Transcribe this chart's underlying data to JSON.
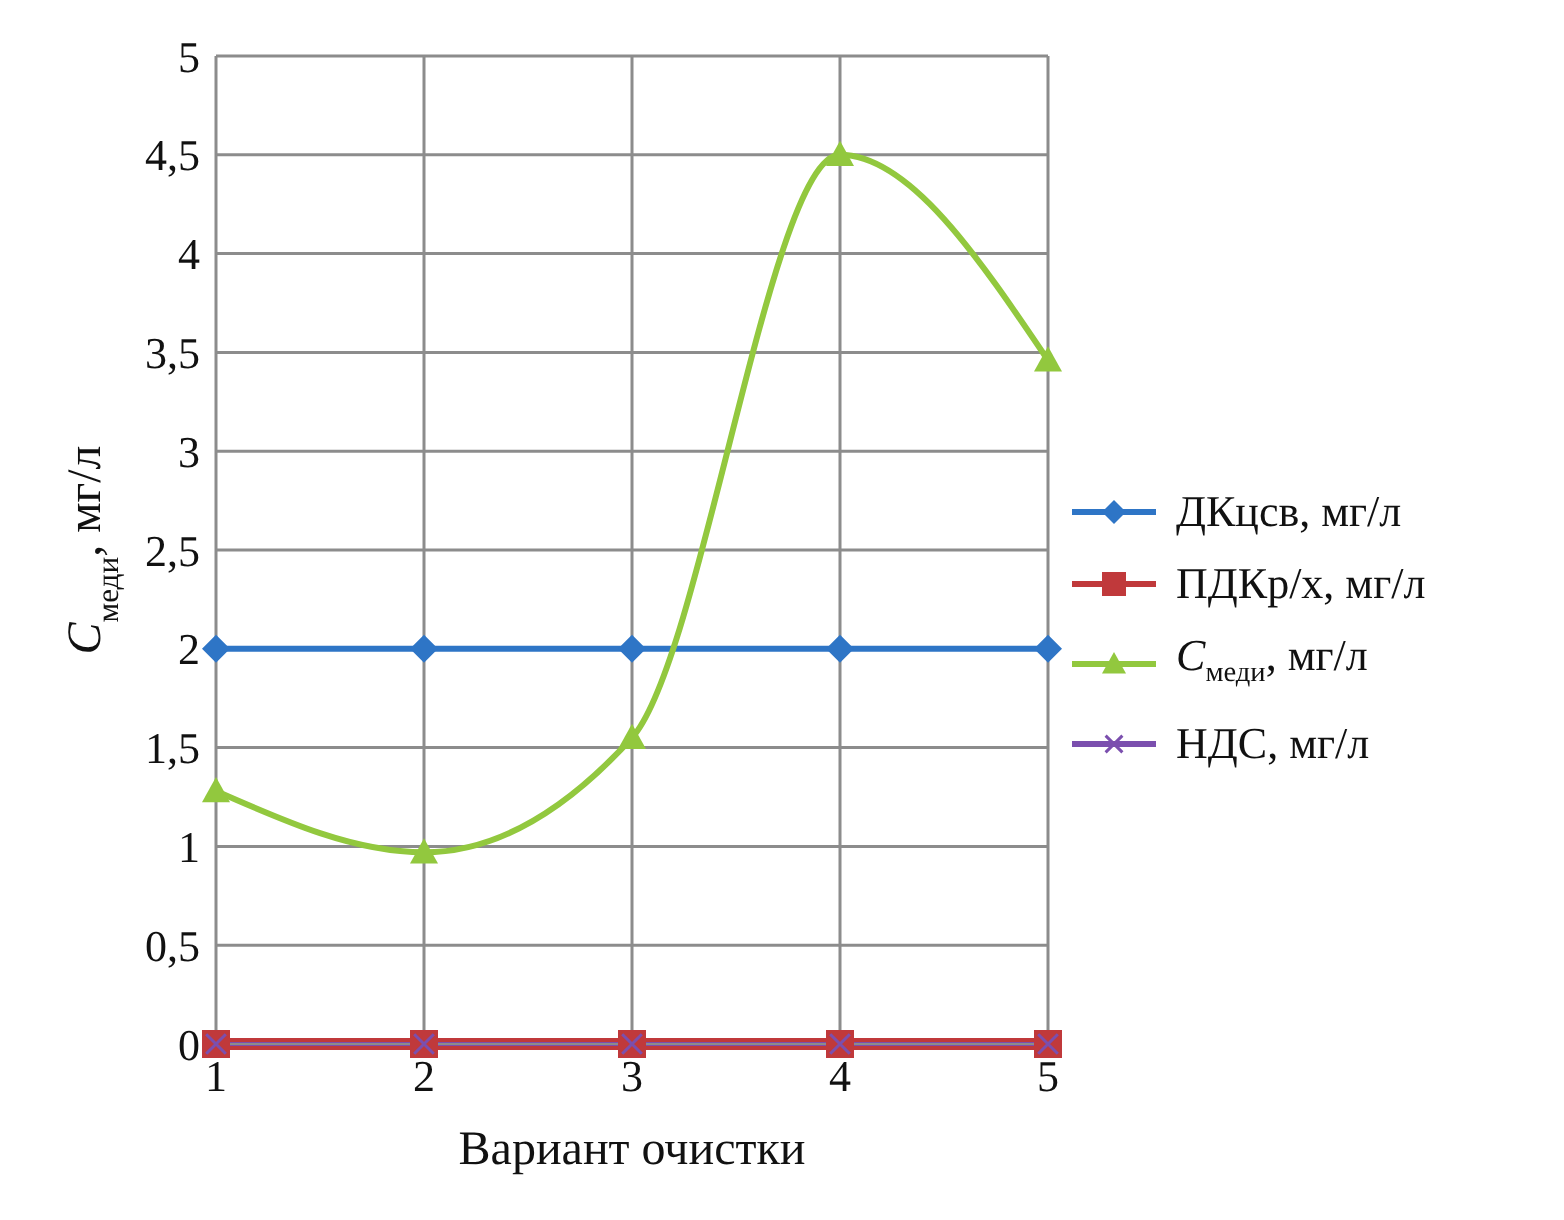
{
  "chart_data": {
    "type": "line",
    "xlabel": "Вариант очистки",
    "ylabel": "C$_{меди}$, мг/л",
    "x": [
      1,
      2,
      3,
      4,
      5
    ],
    "xlim": [
      1,
      5
    ],
    "xticks": [
      1,
      2,
      3,
      4,
      5
    ],
    "ylim": [
      0,
      5
    ],
    "yticks": [
      0,
      {
        "value": 0.5,
        "label": "0,5"
      },
      1,
      {
        "value": 1.5,
        "label": "1,5"
      },
      2,
      {
        "value": 2.5,
        "label": "2,5"
      },
      3,
      {
        "value": 3.5,
        "label": "3,5"
      },
      4,
      {
        "value": 4.5,
        "label": "4,5"
      },
      5
    ],
    "grid": true,
    "legend": "right",
    "series": [
      {
        "name": "ДКцсв, мг/л",
        "color": "#2e75c6",
        "marker": "diamond",
        "values": [
          2,
          2,
          2,
          2,
          2
        ]
      },
      {
        "name": "ПДКр/х, мг/л",
        "color": "#c0393b",
        "marker": "square",
        "values": [
          0,
          0,
          0,
          0,
          0
        ]
      },
      {
        "name": "C$_{меди}$, мг/л",
        "color": "#92c83e",
        "marker": "triangle",
        "values": [
          1.28,
          0.97,
          1.55,
          4.5,
          3.46
        ]
      },
      {
        "name": "НДС, мг/л",
        "color": "#7b4fae",
        "marker": "cross",
        "values": [
          0,
          0,
          0,
          0,
          0
        ]
      }
    ]
  }
}
